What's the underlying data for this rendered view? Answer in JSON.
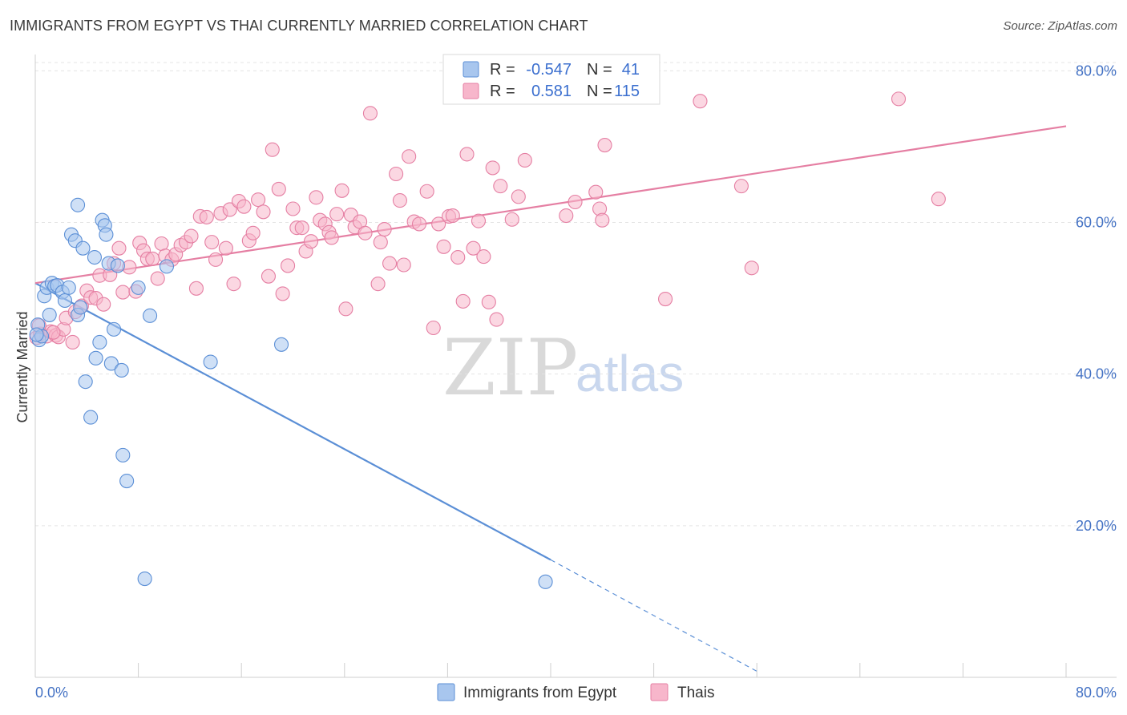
{
  "header": {
    "title": "IMMIGRANTS FROM EGYPT VS THAI CURRENTLY MARRIED CORRELATION CHART",
    "source": "Source: ZipAtlas.com"
  },
  "legend": {
    "rows": [
      {
        "r_label": "R =",
        "r_value": "-0.547",
        "n_label": "N =",
        "n_value": "41",
        "color": "#a8c6ee",
        "stroke": "#5b8fd6"
      },
      {
        "r_label": "R =",
        "r_value": "0.581",
        "n_label": "N =",
        "n_value": "115",
        "color": "#f7b6cb",
        "stroke": "#e57fa3"
      }
    ]
  },
  "bottom_legend": {
    "items": [
      {
        "label": "Immigrants from Egypt",
        "color": "#a8c6ee",
        "stroke": "#5b8fd6"
      },
      {
        "label": "Thais",
        "color": "#f7b6cb",
        "stroke": "#e57fa3"
      }
    ]
  },
  "watermark": {
    "zip": "ZIP",
    "atlas": "atlas"
  },
  "chart_data": {
    "type": "scatter",
    "title": "IMMIGRANTS FROM EGYPT VS THAI CURRENTLY MARRIED CORRELATION CHART",
    "xlabel": "",
    "ylabel": "Currently Married",
    "xlim": [
      0,
      80
    ],
    "ylim": [
      0,
      83
    ],
    "x_tick_labels": [
      "0.0%",
      "80.0%"
    ],
    "y_ticks": [
      20,
      40,
      60,
      80
    ],
    "y_tick_labels": [
      "20.0%",
      "40.0%",
      "60.0%",
      "80.0%"
    ],
    "grid": true,
    "legend_position": "top-center",
    "series": [
      {
        "name": "Immigrants from Egypt",
        "color": "#5b8fd6",
        "fill": "#a8c6ee",
        "trend": {
          "x": [
            0,
            40
          ],
          "y": [
            52.0,
            15.5
          ],
          "dashed_to": [
            56,
            0.8
          ]
        },
        "points": [
          [
            0.2,
            46.5
          ],
          [
            0.3,
            44.5
          ],
          [
            0.5,
            45.0
          ],
          [
            0.7,
            50.3
          ],
          [
            0.9,
            51.4
          ],
          [
            1.1,
            47.8
          ],
          [
            1.3,
            52.0
          ],
          [
            1.5,
            51.6
          ],
          [
            1.7,
            51.7
          ],
          [
            2.1,
            50.8
          ],
          [
            2.3,
            49.7
          ],
          [
            2.6,
            51.4
          ],
          [
            2.8,
            58.4
          ],
          [
            3.1,
            57.6
          ],
          [
            3.3,
            47.8
          ],
          [
            3.3,
            62.3
          ],
          [
            3.5,
            48.8
          ],
          [
            3.7,
            56.6
          ],
          [
            3.9,
            39.0
          ],
          [
            4.3,
            34.3
          ],
          [
            4.6,
            55.4
          ],
          [
            4.7,
            42.1
          ],
          [
            5.0,
            44.2
          ],
          [
            5.2,
            60.3
          ],
          [
            5.4,
            59.6
          ],
          [
            5.5,
            58.4
          ],
          [
            5.7,
            54.6
          ],
          [
            5.9,
            41.4
          ],
          [
            6.1,
            45.9
          ],
          [
            6.4,
            54.3
          ],
          [
            6.7,
            40.5
          ],
          [
            6.8,
            29.3
          ],
          [
            7.1,
            25.9
          ],
          [
            8.0,
            51.4
          ],
          [
            8.5,
            13.0
          ],
          [
            8.9,
            47.7
          ],
          [
            10.2,
            54.2
          ],
          [
            13.6,
            41.6
          ],
          [
            19.1,
            43.9
          ],
          [
            39.6,
            12.6
          ],
          [
            0.1,
            45.2
          ]
        ]
      },
      {
        "name": "Thais",
        "color": "#e57fa3",
        "fill": "#f7b6cb",
        "trend": {
          "x": [
            0,
            80
          ],
          "y": [
            52.0,
            72.7
          ]
        },
        "points": [
          [
            0.1,
            44.8
          ],
          [
            0.4,
            45.3
          ],
          [
            0.9,
            45.0
          ],
          [
            1.2,
            45.6
          ],
          [
            1.6,
            45.1
          ],
          [
            1.8,
            44.9
          ],
          [
            2.2,
            45.9
          ],
          [
            2.4,
            47.4
          ],
          [
            2.9,
            44.2
          ],
          [
            3.1,
            48.2
          ],
          [
            3.6,
            49.0
          ],
          [
            4.0,
            51.0
          ],
          [
            4.3,
            50.1
          ],
          [
            4.7,
            50.0
          ],
          [
            5.0,
            53.0
          ],
          [
            5.3,
            49.2
          ],
          [
            5.8,
            53.1
          ],
          [
            6.1,
            54.6
          ],
          [
            6.5,
            56.6
          ],
          [
            6.8,
            50.8
          ],
          [
            7.3,
            54.1
          ],
          [
            7.8,
            50.9
          ],
          [
            8.1,
            57.3
          ],
          [
            8.4,
            56.3
          ],
          [
            8.7,
            55.2
          ],
          [
            9.1,
            55.2
          ],
          [
            9.5,
            52.6
          ],
          [
            9.8,
            57.2
          ],
          [
            10.1,
            55.6
          ],
          [
            10.6,
            55.1
          ],
          [
            10.9,
            55.8
          ],
          [
            11.3,
            57.0
          ],
          [
            11.7,
            57.4
          ],
          [
            12.1,
            58.2
          ],
          [
            12.5,
            51.3
          ],
          [
            12.8,
            60.8
          ],
          [
            13.3,
            60.7
          ],
          [
            13.7,
            57.4
          ],
          [
            14.0,
            55.1
          ],
          [
            14.4,
            61.2
          ],
          [
            14.8,
            56.6
          ],
          [
            15.1,
            61.7
          ],
          [
            15.4,
            51.9
          ],
          [
            15.8,
            62.8
          ],
          [
            16.2,
            62.1
          ],
          [
            16.6,
            57.6
          ],
          [
            16.9,
            58.6
          ],
          [
            17.3,
            63.0
          ],
          [
            17.7,
            61.4
          ],
          [
            18.1,
            52.9
          ],
          [
            18.4,
            69.6
          ],
          [
            18.9,
            64.4
          ],
          [
            19.2,
            50.6
          ],
          [
            19.6,
            54.3
          ],
          [
            20.0,
            61.8
          ],
          [
            20.3,
            59.3
          ],
          [
            20.7,
            59.3
          ],
          [
            21.0,
            56.2
          ],
          [
            21.4,
            57.5
          ],
          [
            21.8,
            63.3
          ],
          [
            22.1,
            60.3
          ],
          [
            22.5,
            59.8
          ],
          [
            22.8,
            58.7
          ],
          [
            23.0,
            58.0
          ],
          [
            23.4,
            61.1
          ],
          [
            23.8,
            64.2
          ],
          [
            24.1,
            48.6
          ],
          [
            24.5,
            61.0
          ],
          [
            24.8,
            59.4
          ],
          [
            25.2,
            60.1
          ],
          [
            25.6,
            58.6
          ],
          [
            26.0,
            74.4
          ],
          [
            26.6,
            51.9
          ],
          [
            26.8,
            57.4
          ],
          [
            27.1,
            59.1
          ],
          [
            27.5,
            54.6
          ],
          [
            28.0,
            66.4
          ],
          [
            28.3,
            62.9
          ],
          [
            28.6,
            54.4
          ],
          [
            29.0,
            68.7
          ],
          [
            29.4,
            60.1
          ],
          [
            29.8,
            59.8
          ],
          [
            30.4,
            64.1
          ],
          [
            30.9,
            46.1
          ],
          [
            31.3,
            59.8
          ],
          [
            31.7,
            56.8
          ],
          [
            32.1,
            60.8
          ],
          [
            32.4,
            60.9
          ],
          [
            32.8,
            55.4
          ],
          [
            33.2,
            49.6
          ],
          [
            33.5,
            69.0
          ],
          [
            34.0,
            56.6
          ],
          [
            34.4,
            60.2
          ],
          [
            34.8,
            55.5
          ],
          [
            35.2,
            49.5
          ],
          [
            35.5,
            67.2
          ],
          [
            35.8,
            47.2
          ],
          [
            36.1,
            64.8
          ],
          [
            37.0,
            60.4
          ],
          [
            37.5,
            63.4
          ],
          [
            38.0,
            68.2
          ],
          [
            41.2,
            60.9
          ],
          [
            41.9,
            62.7
          ],
          [
            43.5,
            64.0
          ],
          [
            43.8,
            61.8
          ],
          [
            44.0,
            60.3
          ],
          [
            44.2,
            70.2
          ],
          [
            48.9,
            49.9
          ],
          [
            51.6,
            76.0
          ],
          [
            54.8,
            64.8
          ],
          [
            55.6,
            54.0
          ],
          [
            67.0,
            76.3
          ],
          [
            70.1,
            63.1
          ],
          [
            0.3,
            46.4
          ],
          [
            1.4,
            45.5
          ]
        ]
      }
    ]
  }
}
